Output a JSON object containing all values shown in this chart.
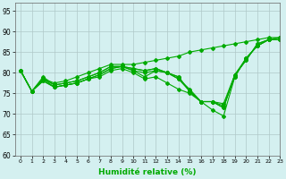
{
  "xlabel": "Humidité relative (%)",
  "background_color": "#d4f0f0",
  "grid_color": "#b0c8c8",
  "line_color": "#00aa00",
  "xlim": [
    -0.5,
    23
  ],
  "ylim": [
    60,
    97
  ],
  "yticks": [
    60,
    65,
    70,
    75,
    80,
    85,
    90,
    95
  ],
  "xticks": [
    0,
    1,
    2,
    3,
    4,
    5,
    6,
    7,
    8,
    9,
    10,
    11,
    12,
    13,
    14,
    15,
    16,
    17,
    18,
    19,
    20,
    21,
    22,
    23
  ],
  "series": [
    [
      80.5,
      75.5,
      78.5,
      76.5,
      77.0,
      77.5,
      78.5,
      79.5,
      81.0,
      81.5,
      80.5,
      79.0,
      80.5,
      80.0,
      78.5,
      75.5,
      73.0,
      73.0,
      72.0,
      79.0,
      83.5,
      86.5,
      88.0,
      88.0
    ],
    [
      80.5,
      75.5,
      78.0,
      76.5,
      77.0,
      77.5,
      78.5,
      79.0,
      80.5,
      81.0,
      80.0,
      78.5,
      79.0,
      77.5,
      76.0,
      75.0,
      73.0,
      71.0,
      69.5,
      79.0,
      83.5,
      86.5,
      88.0,
      88.0
    ],
    [
      80.5,
      75.5,
      78.0,
      76.5,
      77.0,
      77.5,
      78.5,
      79.5,
      81.0,
      81.5,
      80.5,
      80.0,
      80.5,
      80.0,
      78.5,
      76.0,
      73.0,
      73.0,
      72.5,
      79.5,
      83.5,
      86.5,
      88.0,
      88.0
    ],
    [
      80.5,
      75.5,
      78.5,
      77.0,
      77.5,
      78.0,
      79.0,
      80.0,
      81.5,
      81.5,
      81.0,
      80.5,
      81.0,
      80.0,
      79.0,
      75.5,
      73.0,
      73.0,
      71.5,
      79.5,
      83.0,
      87.0,
      88.0,
      88.5
    ],
    [
      80.5,
      75.5,
      79.0,
      77.0,
      77.5,
      78.0,
      79.0,
      80.0,
      81.5,
      81.5,
      81.0,
      80.5,
      81.0,
      80.0,
      79.0,
      75.5,
      73.0,
      73.0,
      71.5,
      79.5,
      83.0,
      87.0,
      88.0,
      88.5
    ],
    [
      80.5,
      75.5,
      78.5,
      77.5,
      78.0,
      79.0,
      80.0,
      81.0,
      82.0,
      82.0,
      82.0,
      82.5,
      83.0,
      83.5,
      84.0,
      85.0,
      85.5,
      86.0,
      86.5,
      87.0,
      87.5,
      88.0,
      88.5,
      88.5
    ]
  ]
}
